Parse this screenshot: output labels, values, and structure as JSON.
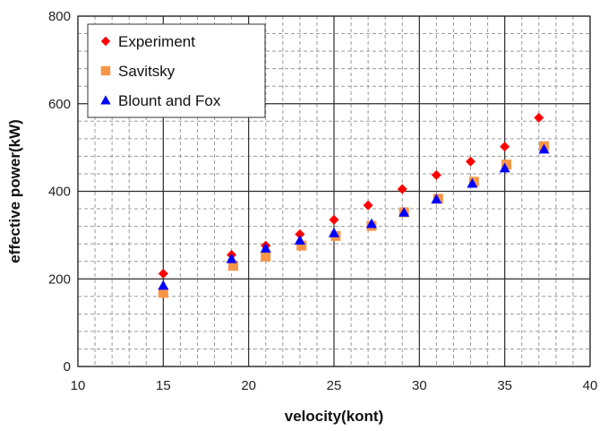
{
  "chart_data": {
    "type": "scatter",
    "xlabel": "velocity(kont)",
    "ylabel": "effective power(kW)",
    "xlim": [
      10,
      40
    ],
    "ylim": [
      0,
      800
    ],
    "x_ticks": [
      10,
      15,
      20,
      25,
      30,
      35,
      40
    ],
    "y_ticks": [
      0,
      200,
      400,
      600,
      800
    ],
    "grid": true,
    "legend_position": "top-left",
    "series": [
      {
        "name": "Experiment",
        "marker": "diamond",
        "color": "#ff0000",
        "x": [
          15,
          19,
          21,
          23,
          25,
          27,
          29,
          31,
          33,
          35,
          37
        ],
        "y": [
          212,
          255,
          276,
          302,
          335,
          368,
          405,
          437,
          468,
          502,
          568
        ]
      },
      {
        "name": "Savitsky",
        "marker": "square",
        "color": "#f79646",
        "x": [
          15,
          19.1,
          21,
          23.1,
          25.1,
          27.2,
          29.1,
          31.1,
          33.2,
          35.1,
          37.3
        ],
        "y": [
          168,
          230,
          251,
          276,
          298,
          321,
          352,
          383,
          422,
          461,
          503
        ]
      },
      {
        "name": "Blount and Fox",
        "marker": "triangle",
        "color": "#0000ff",
        "x": [
          15,
          19,
          21,
          23,
          25,
          27.2,
          29.1,
          31,
          33.1,
          35,
          37.3
        ],
        "y": [
          185,
          246,
          270,
          288,
          305,
          326,
          352,
          382,
          418,
          453,
          496
        ]
      }
    ]
  }
}
